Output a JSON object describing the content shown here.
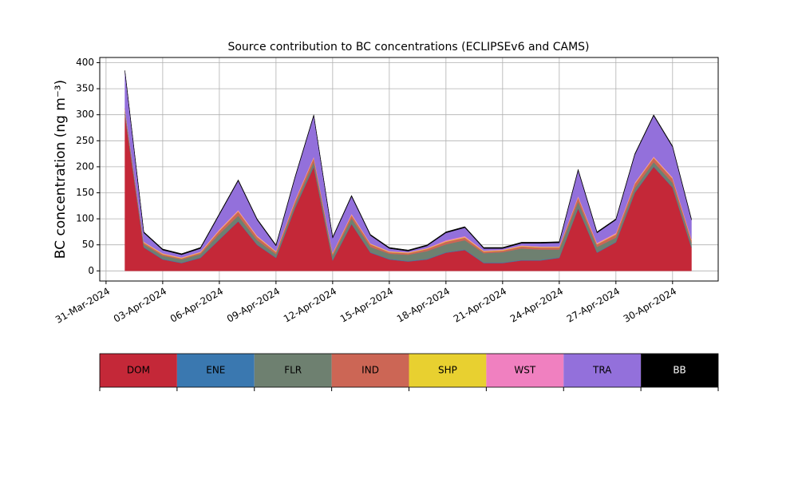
{
  "chart_data": {
    "type": "stacked_area",
    "title": "Source contribution to BC concentrations (ECLIPSEv6 and CAMS)",
    "y_label": "BC concentration (ng m⁻³)",
    "x": [
      "2024-04-01",
      "2024-04-02",
      "2024-04-03",
      "2024-04-04",
      "2024-04-05",
      "2024-04-06",
      "2024-04-07",
      "2024-04-08",
      "2024-04-09",
      "2024-04-10",
      "2024-04-11",
      "2024-04-12",
      "2024-04-13",
      "2024-04-14",
      "2024-04-15",
      "2024-04-16",
      "2024-04-17",
      "2024-04-18",
      "2024-04-19",
      "2024-04-20",
      "2024-04-21",
      "2024-04-22",
      "2024-04-23",
      "2024-04-24",
      "2024-04-25",
      "2024-04-26",
      "2024-04-27",
      "2024-04-28",
      "2024-04-29",
      "2024-04-30",
      "2024-05-01"
    ],
    "series": [
      {
        "name": "DOM",
        "color": "#c42838",
        "values": [
          300,
          45,
          22,
          15,
          25,
          60,
          95,
          50,
          25,
          120,
          200,
          20,
          90,
          35,
          22,
          18,
          22,
          35,
          40,
          15,
          15,
          20,
          20,
          25,
          120,
          35,
          55,
          150,
          200,
          160,
          45
        ]
      },
      {
        "name": "ENE",
        "color": "#3a78b0",
        "values": [
          1,
          1,
          1,
          1,
          1,
          1,
          1,
          1,
          1,
          1,
          1,
          1,
          1,
          1,
          1,
          1,
          1,
          1,
          1,
          1,
          1,
          1,
          1,
          1,
          1,
          1,
          1,
          1,
          1,
          1,
          1
        ]
      },
      {
        "name": "FLR",
        "color": "#6e8070",
        "values": [
          5,
          5,
          6,
          6,
          6,
          10,
          10,
          8,
          6,
          6,
          8,
          8,
          10,
          10,
          10,
          12,
          15,
          15,
          18,
          18,
          20,
          22,
          20,
          15,
          12,
          10,
          8,
          8,
          8,
          8,
          8
        ]
      },
      {
        "name": "IND",
        "color": "#cc6655",
        "values": [
          5,
          3,
          3,
          2,
          3,
          6,
          8,
          6,
          4,
          6,
          8,
          4,
          6,
          5,
          3,
          3,
          4,
          5,
          5,
          3,
          3,
          4,
          4,
          4,
          8,
          5,
          6,
          8,
          8,
          8,
          5
        ]
      },
      {
        "name": "SHP",
        "color": "#e8d030",
        "values": [
          1,
          1,
          1,
          1,
          1,
          1,
          1,
          1,
          1,
          1,
          1,
          1,
          1,
          1,
          1,
          1,
          1,
          1,
          1,
          1,
          1,
          1,
          1,
          1,
          1,
          1,
          1,
          1,
          1,
          1,
          1
        ]
      },
      {
        "name": "WST",
        "color": "#f080c0",
        "values": [
          1,
          1,
          1,
          1,
          1,
          2,
          2,
          2,
          1,
          2,
          2,
          1,
          2,
          1,
          1,
          1,
          1,
          2,
          2,
          1,
          1,
          1,
          1,
          1,
          2,
          2,
          2,
          2,
          2,
          2,
          2
        ]
      },
      {
        "name": "TRA",
        "color": "#9370db",
        "values": [
          70,
          17,
          6,
          5,
          6,
          28,
          56,
          30,
          10,
          42,
          78,
          28,
          33,
          15,
          5,
          2,
          4,
          14,
          16,
          4,
          2,
          4,
          6,
          7,
          49,
          19,
          25,
          53,
          78,
          58,
          36
        ]
      },
      {
        "name": "BB",
        "color": "#000000",
        "values": [
          2,
          2,
          2,
          2,
          2,
          2,
          2,
          2,
          2,
          2,
          2,
          2,
          2,
          2,
          2,
          2,
          2,
          2,
          2,
          2,
          2,
          2,
          2,
          2,
          2,
          2,
          2,
          2,
          2,
          2,
          2
        ]
      }
    ],
    "xlim": [
      "2024-03-30T16:00Z",
      "2024-05-02T10:00Z"
    ],
    "xticks": [
      {
        "value": "2024-03-31",
        "label": "31-Mar-2024"
      },
      {
        "value": "2024-04-03",
        "label": "03-Apr-2024"
      },
      {
        "value": "2024-04-06",
        "label": "06-Apr-2024"
      },
      {
        "value": "2024-04-09",
        "label": "09-Apr-2024"
      },
      {
        "value": "2024-04-12",
        "label": "12-Apr-2024"
      },
      {
        "value": "2024-04-15",
        "label": "15-Apr-2024"
      },
      {
        "value": "2024-04-18",
        "label": "18-Apr-2024"
      },
      {
        "value": "2024-04-21",
        "label": "21-Apr-2024"
      },
      {
        "value": "2024-04-24",
        "label": "24-Apr-2024"
      },
      {
        "value": "2024-04-27",
        "label": "27-Apr-2024"
      },
      {
        "value": "2024-04-30",
        "label": "30-Apr-2024"
      }
    ],
    "ylim": [
      -19.5,
      410
    ],
    "yticks": [
      0,
      50,
      100,
      150,
      200,
      250,
      300,
      350,
      400
    ],
    "grid": true
  }
}
